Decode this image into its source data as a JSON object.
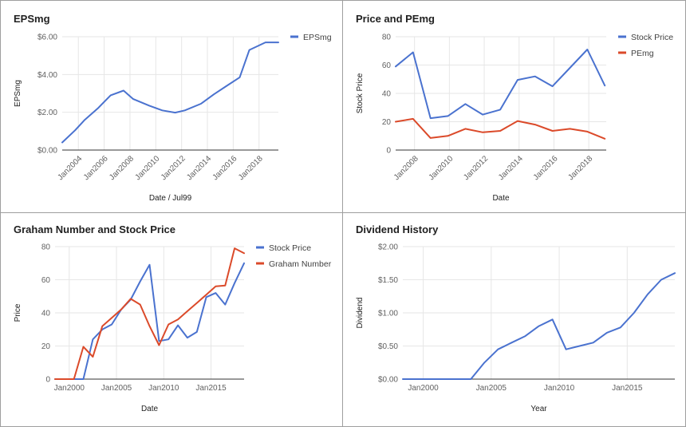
{
  "colors": {
    "blue": "#4a72cf",
    "red": "#db4a2a"
  },
  "chart_data": [
    {
      "type": "line",
      "title": "EPSmg",
      "xlabel": "Date / Jul99",
      "ylabel": "EPSmg",
      "x_axis_type": "date",
      "ylim": [
        0,
        6
      ],
      "yticks": [
        0,
        2,
        4,
        6
      ],
      "ytick_labels": [
        "$0.00",
        "$2.00",
        "$4.00",
        "$6.00"
      ],
      "xticks": [
        "2004-01",
        "2006-01",
        "2008-01",
        "2010-01",
        "2012-01",
        "2014-01",
        "2016-01",
        "2018-01"
      ],
      "xtick_labels": [
        "Jan2004",
        "Jan2006",
        "Jan2008",
        "Jan2010",
        "Jan2012",
        "Jan2014",
        "Jan2016",
        "Jan2018"
      ],
      "xlim": [
        "2002-10",
        "2019-07"
      ],
      "legend": "right",
      "x": [
        "2002-10",
        "2003-10",
        "2004-07",
        "2005-07",
        "2006-07",
        "2007-07",
        "2008-04",
        "2009-07",
        "2010-07",
        "2011-07",
        "2012-04",
        "2013-07",
        "2014-07",
        "2015-07",
        "2016-07",
        "2017-04",
        "2018-07",
        "2019-07"
      ],
      "series": [
        {
          "name": "EPSmg",
          "color": "#4a72cf",
          "values": [
            0.4,
            1.05,
            1.6,
            2.2,
            2.9,
            3.15,
            2.7,
            2.35,
            2.1,
            1.98,
            2.1,
            2.45,
            2.95,
            3.4,
            3.85,
            5.3,
            5.7,
            5.7
          ]
        }
      ]
    },
    {
      "type": "line",
      "title": "Price and PEmg",
      "xlabel": "Date",
      "ylabel": "Stock Price",
      "x_axis_type": "date",
      "ylim": [
        0,
        80
      ],
      "yticks": [
        0,
        20,
        40,
        60,
        80
      ],
      "ytick_labels": [
        "0",
        "20",
        "40",
        "60",
        "80"
      ],
      "xticks": [
        "2008-01",
        "2010-01",
        "2012-01",
        "2014-01",
        "2016-01",
        "2018-01"
      ],
      "xtick_labels": [
        "Jan2008",
        "Jan2010",
        "Jan2012",
        "Jan2014",
        "Jan2016",
        "Jan2018"
      ],
      "xlim": [
        "2006-12",
        "2019-01"
      ],
      "legend": "right",
      "x": [
        "2006-12",
        "2007-12",
        "2008-12",
        "2009-12",
        "2010-12",
        "2011-12",
        "2012-12",
        "2013-12",
        "2014-12",
        "2015-12",
        "2016-12",
        "2017-12",
        "2018-12"
      ],
      "series": [
        {
          "name": "Stock Price",
          "color": "#4a72cf",
          "values": [
            59,
            69,
            22.5,
            24,
            32.5,
            25,
            28.5,
            49.5,
            52,
            45,
            58,
            71,
            45.5
          ]
        },
        {
          "name": "PEmg",
          "color": "#db4a2a",
          "values": [
            20,
            22,
            8.5,
            10,
            15,
            12.5,
            13.5,
            20.5,
            18,
            13.5,
            15,
            13,
            8
          ]
        }
      ]
    },
    {
      "type": "line",
      "title": "Graham Number and Stock Price",
      "xlabel": "Date",
      "ylabel": "Price",
      "x_axis_type": "date",
      "ylim": [
        0,
        80
      ],
      "yticks": [
        0,
        20,
        40,
        60,
        80
      ],
      "ytick_labels": [
        "0",
        "20",
        "40",
        "60",
        "80"
      ],
      "xticks": [
        "2000-01",
        "2005-01",
        "2010-01",
        "2015-01"
      ],
      "xtick_labels": [
        "Jan2000",
        "Jan2005",
        "Jan2010",
        "Jan2015"
      ],
      "xlim": [
        "1998-07",
        "2018-07"
      ],
      "legend": "right",
      "series": [
        {
          "name": "Stock Price",
          "color": "#4a72cf",
          "x": [
            "1998-07",
            "1999-07",
            "2000-07",
            "2001-07",
            "2002-07",
            "2003-07",
            "2004-07",
            "2005-07",
            "2006-07",
            "2007-07",
            "2008-07",
            "2009-07",
            "2010-07",
            "2011-07",
            "2012-07",
            "2013-07",
            "2014-07",
            "2015-07",
            "2016-07",
            "2017-07",
            "2018-07"
          ],
          "values": [
            0,
            0,
            0,
            0,
            24,
            30,
            33,
            42,
            48,
            59,
            69,
            23,
            24,
            32.5,
            25,
            28.5,
            49.5,
            52,
            45,
            58,
            70
          ]
        },
        {
          "name": "Graham Number",
          "color": "#db4a2a",
          "x": [
            "1998-07",
            "1999-07",
            "2000-07",
            "2001-07",
            "2002-07",
            "2003-07",
            "2004-07",
            "2005-07",
            "2006-07",
            "2007-07",
            "2008-07",
            "2009-07",
            "2010-07",
            "2011-07",
            "2012-07",
            "2013-07",
            "2014-07",
            "2015-07",
            "2016-07",
            "2017-07",
            "2018-07"
          ],
          "values": [
            0,
            0,
            0,
            19.5,
            13.5,
            32,
            37,
            42,
            48.5,
            45,
            32,
            20.5,
            33,
            36,
            41,
            46,
            51,
            56,
            56.5,
            79,
            76
          ]
        }
      ]
    },
    {
      "type": "line",
      "title": "Dividend History",
      "xlabel": "Year",
      "ylabel": "Dividend",
      "x_axis_type": "date",
      "ylim": [
        0,
        2
      ],
      "yticks": [
        0,
        0.5,
        1,
        1.5,
        2
      ],
      "ytick_labels": [
        "$0.00",
        "$0.50",
        "$1.00",
        "$1.50",
        "$2.00"
      ],
      "xticks": [
        "2000-01",
        "2005-01",
        "2010-01",
        "2015-01"
      ],
      "xtick_labels": [
        "Jan2000",
        "Jan2005",
        "Jan2010",
        "Jan2015"
      ],
      "xlim": [
        "1998-07",
        "2018-07"
      ],
      "legend": "none",
      "series": [
        {
          "name": "",
          "color": "#4a72cf",
          "x": [
            "1998-07",
            "1999-07",
            "2000-07",
            "2001-07",
            "2002-07",
            "2003-07",
            "2004-07",
            "2005-07",
            "2006-07",
            "2007-07",
            "2008-07",
            "2009-07",
            "2010-07",
            "2011-07",
            "2012-07",
            "2013-07",
            "2014-07",
            "2015-07",
            "2016-07",
            "2017-07",
            "2018-07"
          ],
          "values": [
            0,
            0,
            0,
            0,
            0,
            0,
            0.25,
            0.45,
            0.55,
            0.65,
            0.8,
            0.9,
            0.45,
            0.5,
            0.55,
            0.7,
            0.78,
            1.0,
            1.28,
            1.5,
            1.6
          ]
        }
      ]
    }
  ]
}
